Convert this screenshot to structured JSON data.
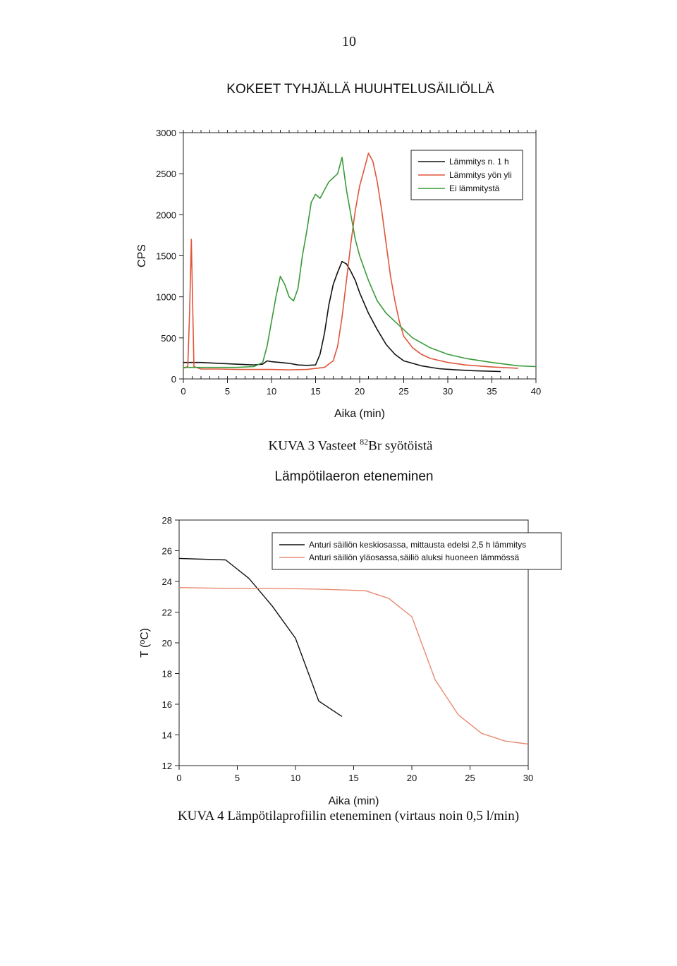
{
  "page_number": "10",
  "section_title": "KOKEET TYHJÄLLÄ HUUHTELUSÄILIÖLLÄ",
  "fig3_caption": {
    "prefix": "KUVA 3 Vasteet ",
    "sup": "82",
    "suffix": "Br syötöistä"
  },
  "fig4_title": "Lämpötilaeron eteneminen",
  "fig4_caption": "KUVA 4 Lämpötilaprofiilin eteneminen (virtaus noin 0,5 l/min)",
  "colors": {
    "black": "#111111",
    "red": "#e0553b",
    "green": "#3a9a3a",
    "salmon": "#e88a70"
  },
  "chart_data": [
    {
      "type": "line",
      "xlabel": "Aika (min)",
      "ylabel": "CPS",
      "xlim": [
        0,
        40
      ],
      "ylim": [
        0,
        3000
      ],
      "xticks": [
        "0",
        "5",
        "10",
        "15",
        "20",
        "25",
        "30",
        "35",
        "40"
      ],
      "yticks": [
        "0",
        "500",
        "1000",
        "1500",
        "2000",
        "2500",
        "3000"
      ],
      "legend_position": "top-right",
      "series": [
        {
          "name": "Lämmitys n. 1 h",
          "color": "#111111",
          "x": [
            0,
            2,
            4,
            6,
            8,
            9,
            9.5,
            10,
            11,
            12,
            13,
            14,
            15,
            15.5,
            16,
            16.5,
            17,
            17.5,
            18,
            18.5,
            19,
            19.5,
            20,
            21,
            22,
            23,
            24,
            25,
            27,
            29,
            31,
            33,
            36
          ],
          "y": [
            200,
            200,
            190,
            180,
            170,
            180,
            220,
            210,
            200,
            190,
            170,
            165,
            170,
            300,
            550,
            900,
            1150,
            1300,
            1430,
            1400,
            1310,
            1200,
            1050,
            800,
            600,
            420,
            300,
            220,
            160,
            125,
            110,
            100,
            90
          ]
        },
        {
          "name": "Lämmitys yön yli",
          "color": "#e0553b",
          "x": [
            0,
            0.5,
            0.7,
            0.9,
            1.2,
            2,
            4,
            6,
            8,
            10,
            12,
            14,
            16,
            17,
            17.5,
            18,
            18.5,
            19,
            19.5,
            20,
            20.5,
            21,
            21.5,
            22,
            22.5,
            23,
            23.5,
            24,
            24.5,
            25,
            26,
            27,
            28,
            30,
            32,
            35,
            38
          ],
          "y": [
            130,
            150,
            800,
            1700,
            150,
            120,
            120,
            115,
            115,
            115,
            110,
            115,
            140,
            220,
            400,
            750,
            1200,
            1650,
            2050,
            2350,
            2550,
            2750,
            2650,
            2400,
            2050,
            1650,
            1250,
            950,
            700,
            520,
            380,
            300,
            250,
            200,
            170,
            145,
            130
          ]
        },
        {
          "name": "Ei lämmitystä",
          "color": "#3a9a3a",
          "x": [
            0,
            2,
            4,
            6,
            8,
            9,
            9.5,
            10,
            10.5,
            11,
            11.5,
            12,
            12.5,
            13,
            13.5,
            14,
            14.5,
            15,
            15.5,
            16,
            16.5,
            17,
            17.5,
            18,
            18.5,
            19,
            19.5,
            20,
            21,
            22,
            23,
            24,
            25,
            26,
            28,
            30,
            32,
            35,
            38,
            40
          ],
          "y": [
            140,
            140,
            140,
            140,
            150,
            200,
            400,
            700,
            1000,
            1250,
            1150,
            1000,
            950,
            1100,
            1500,
            1800,
            2150,
            2250,
            2200,
            2300,
            2400,
            2450,
            2500,
            2700,
            2300,
            2000,
            1700,
            1500,
            1200,
            950,
            800,
            700,
            600,
            500,
            380,
            300,
            250,
            200,
            160,
            150
          ]
        }
      ]
    },
    {
      "type": "line",
      "xlabel": "Aika (min)",
      "ylabel": "T (ºC)",
      "xlim": [
        0,
        30
      ],
      "ylim": [
        12,
        28
      ],
      "xticks": [
        "0",
        "5",
        "10",
        "15",
        "20",
        "25",
        "30"
      ],
      "yticks": [
        "12",
        "14",
        "16",
        "18",
        "20",
        "22",
        "24",
        "26",
        "28"
      ],
      "legend_position": "top-right",
      "series": [
        {
          "name": "Anturi säiliön keskiosassa, mittausta edelsi 2,5 h lämmitys",
          "color": "#111111",
          "x": [
            0,
            4,
            6,
            8,
            10,
            12,
            14
          ],
          "y": [
            25.5,
            25.4,
            24.2,
            22.4,
            20.3,
            16.2,
            15.2
          ]
        },
        {
          "name": "Anturi säiliön yläosassa,säiliö aluksi huoneen lämmössä",
          "color": "#e88a70",
          "x": [
            0,
            4,
            8,
            12,
            16,
            18,
            20,
            22,
            24,
            26,
            28,
            30
          ],
          "y": [
            23.6,
            23.55,
            23.55,
            23.5,
            23.4,
            22.9,
            21.7,
            17.6,
            15.3,
            14.1,
            13.6,
            13.4
          ]
        }
      ]
    }
  ]
}
